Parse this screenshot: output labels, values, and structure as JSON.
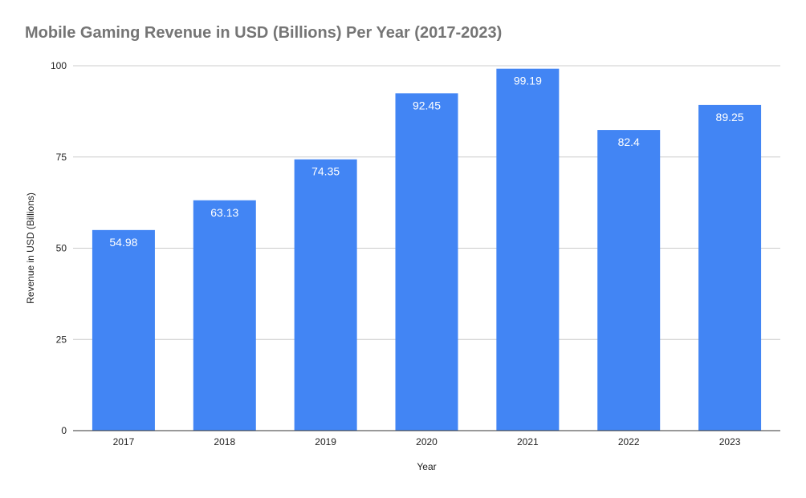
{
  "chart_data": {
    "type": "bar",
    "title": "Mobile Gaming Revenue in USD (Billions) Per Year (2017-2023)",
    "xlabel": "Year",
    "ylabel": "Revenue in USD (Billions)",
    "categories": [
      "2017",
      "2018",
      "2019",
      "2020",
      "2021",
      "2022",
      "2023"
    ],
    "values": [
      54.98,
      63.13,
      74.35,
      92.45,
      99.19,
      82.4,
      89.25
    ],
    "value_labels": [
      "54.98",
      "63.13",
      "74.35",
      "92.45",
      "99.19",
      "82.4",
      "89.25"
    ],
    "ylim": [
      0,
      100
    ],
    "yticks": [
      "0",
      "25",
      "50",
      "75",
      "100"
    ],
    "grid": true,
    "legend": "none",
    "colors": {
      "bar": "#4285f4",
      "title": "#757575",
      "grid": "#cccccc",
      "axis": "#333333",
      "tick_label": "#222222",
      "data_label": "#ffffff"
    }
  }
}
